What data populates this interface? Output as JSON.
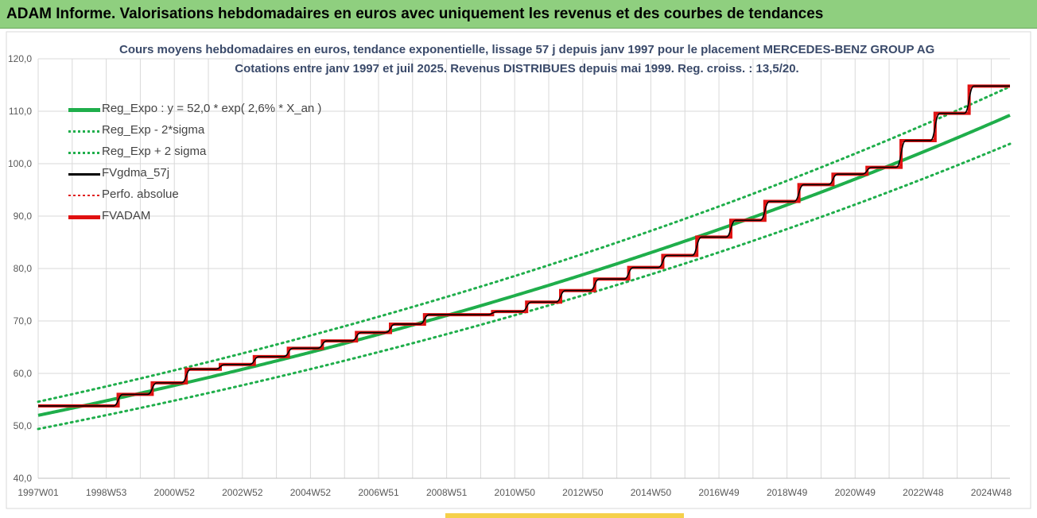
{
  "header": {
    "title": "ADAM Informe. Valorisations hebdomadaires en euros avec uniquement les revenus et des courbes de tendances"
  },
  "chart_data": {
    "type": "line",
    "title": "Cours moyens hebdomadaires en euros, tendance exponentielle, lissage 57 j depuis janv 1997  pour le placement MERCEDES-BENZ GROUP AG",
    "subtitle": "Cotations entre janv 1997 et juil 2025. Revenus DISTRIBUES depuis mai 1999. Reg.  croiss. : 13,5/20.",
    "xlabel": "",
    "ylabel": "",
    "ylim": [
      40,
      120
    ],
    "xlim": [
      1997.0,
      2025.55
    ],
    "y_ticks": [
      "40,0",
      "50,0",
      "60,0",
      "70,0",
      "80,0",
      "90,0",
      "100,0",
      "110,0",
      "120,0"
    ],
    "x_tick_labels": [
      "1997W01",
      "1998W53",
      "2000W52",
      "2002W52",
      "2004W52",
      "2006W51",
      "2008W51",
      "2010W50",
      "2012W50",
      "2014W50",
      "2016W49",
      "2018W49",
      "2020W49",
      "2022W48",
      "2024W48"
    ],
    "grid": true,
    "legend_position": "top-left",
    "regression": {
      "a": 52.0,
      "rate": 0.026,
      "sigma_band": 0.05
    },
    "steps_x": [
      1997.0,
      1999.35,
      2000.35,
      2001.35,
      2002.35,
      2003.35,
      2004.35,
      2005.35,
      2006.35,
      2007.35,
      2008.35,
      2010.35,
      2011.35,
      2012.35,
      2013.35,
      2014.35,
      2015.35,
      2016.35,
      2017.35,
      2018.35,
      2019.35,
      2020.35,
      2021.35,
      2022.35,
      2023.35,
      2024.35,
      2025.55
    ],
    "steps_y": [
      53.8,
      56.0,
      58.2,
      60.8,
      61.7,
      63.2,
      64.8,
      66.2,
      67.8,
      69.4,
      71.2,
      71.8,
      73.6,
      75.8,
      78.0,
      80.2,
      82.5,
      86.0,
      89.2,
      92.8,
      96.0,
      98.0,
      99.3,
      104.4,
      109.6,
      114.8,
      114.8
    ],
    "series": [
      {
        "name": "Reg_Expo : y = 52,0 * exp( 2,6% *  X_an )",
        "color": "#1fae4b",
        "style": "solid"
      },
      {
        "name": "Reg_Exp - 2*sigma",
        "color": "#1fae4b",
        "style": "dotted"
      },
      {
        "name": "Reg_Exp + 2 sigma",
        "color": "#1fae4b",
        "style": "dotted"
      },
      {
        "name": "FVgdma_57j",
        "color": "#000000",
        "style": "solid"
      },
      {
        "name": "Perfo. absolue",
        "color": "#e02020",
        "style": "dotted"
      },
      {
        "name": "FVADAM",
        "color": "#e01010",
        "style": "solid"
      }
    ]
  }
}
